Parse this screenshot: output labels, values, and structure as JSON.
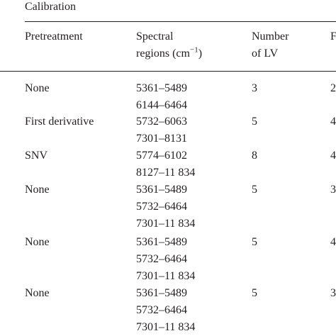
{
  "title": "Calibration",
  "header": {
    "pretreatment": "Pretreatment",
    "spectral": [
      "Spectral",
      "regions (cm"
    ],
    "spectral_sup": "−1",
    "spectral_close": ")",
    "lv": [
      "Number",
      "of LV"
    ],
    "next": "F"
  },
  "rows": [
    {
      "pretreatment": "None",
      "regions": [
        "5361–5489",
        "6144–6464"
      ],
      "lv": "3",
      "next": "2"
    },
    {
      "pretreatment": "First derivative",
      "regions": [
        "5732–6063",
        "7301–8131"
      ],
      "lv": "5",
      "next": "4"
    },
    {
      "pretreatment": "SNV",
      "regions": [
        "5774–6102",
        "8127–11 834"
      ],
      "lv": "8",
      "next": "4"
    },
    {
      "pretreatment": "None",
      "regions": [
        "5361–5489",
        "5732–6464",
        "7301–11 834"
      ],
      "lv": "5",
      "next": "3"
    },
    {
      "pretreatment": "None",
      "regions": [
        "5361–5489",
        "5732–6464",
        "7301–11 834"
      ],
      "lv": "5",
      "next": "4"
    },
    {
      "pretreatment": "None",
      "regions": [
        "5361–5489",
        "5732–6464",
        "7301–11 834"
      ],
      "lv": "5",
      "next": "3"
    }
  ]
}
